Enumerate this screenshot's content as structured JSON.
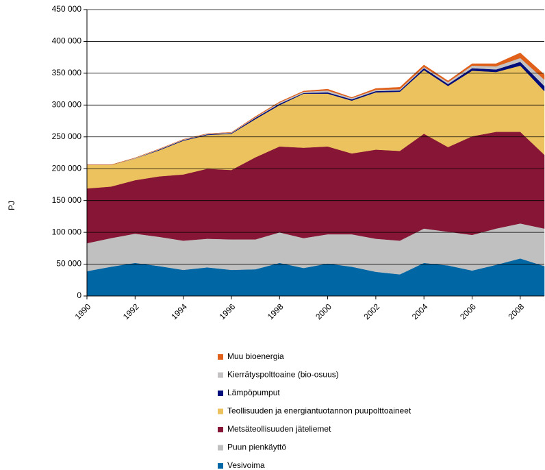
{
  "chart_data": {
    "type": "area",
    "stacked": true,
    "y_label": "PJ",
    "x": [
      1990,
      1991,
      1992,
      1993,
      1994,
      1995,
      1996,
      1997,
      1998,
      1999,
      2000,
      2001,
      2002,
      2003,
      2004,
      2005,
      2006,
      2007,
      2008,
      2009
    ],
    "xlim": [
      1990,
      2009
    ],
    "xticks": [
      1990,
      1992,
      1994,
      1996,
      1998,
      2000,
      2002,
      2004,
      2006,
      2008
    ],
    "ylim": [
      0,
      450000
    ],
    "yticks": [
      0,
      {
        "value": 50000,
        "label": "50 000"
      },
      {
        "value": 100000,
        "label": "100 000"
      },
      {
        "value": 150000,
        "label": "150 000"
      },
      {
        "value": 200000,
        "label": "200 000"
      },
      {
        "value": 250000,
        "label": "250 000"
      },
      {
        "value": 300000,
        "label": "300 000"
      },
      {
        "value": 350000,
        "label": "350 000"
      },
      {
        "value": 400000,
        "label": "400 000"
      },
      {
        "value": 450000,
        "label": "450 000"
      }
    ],
    "grid": true,
    "legend": "bottom",
    "series": [
      {
        "name": "Vesivoima",
        "color": "#0066a4",
        "values": [
          39000,
          46000,
          52000,
          47000,
          41000,
          45000,
          41000,
          42000,
          52000,
          44000,
          51000,
          46000,
          38000,
          34000,
          52000,
          48000,
          40000,
          49000,
          59000,
          47000
        ]
      },
      {
        "name": "Puun pienkäyttö",
        "color": "#c0c0c0",
        "values": [
          44000,
          45000,
          46000,
          46000,
          46000,
          45000,
          48000,
          47000,
          48000,
          47000,
          46000,
          51000,
          52000,
          53000,
          54000,
          53000,
          56000,
          57000,
          55000,
          59000
        ]
      },
      {
        "name": "Metsäteollisuuden jäteliemet",
        "color": "#871636",
        "values": [
          86000,
          81000,
          84000,
          95000,
          104000,
          110000,
          109000,
          129000,
          135000,
          142000,
          138000,
          127000,
          140000,
          141000,
          149000,
          133000,
          155000,
          152000,
          144000,
          116000
        ]
      },
      {
        "name": "Teollisuuden ja energiantuotannon puupolttoaineet",
        "color": "#ebc25e",
        "values": [
          37000,
          34000,
          34000,
          41000,
          53000,
          53000,
          57000,
          60000,
          65000,
          85000,
          83000,
          83000,
          90000,
          93000,
          100000,
          96000,
          103000,
          94000,
          104000,
          100000
        ]
      },
      {
        "name": "Lämpöpumput",
        "color": "#000c7a",
        "values": [
          0,
          0,
          0,
          1000,
          1000,
          1000,
          1000,
          2000,
          2000,
          1000,
          2000,
          2000,
          2000,
          2000,
          3000,
          3000,
          4000,
          4000,
          6000,
          8000
        ]
      },
      {
        "name": "Kierrätyspolttoaine (bio-osuus)",
        "color": "#c4c2c2",
        "values": [
          0,
          0,
          1000,
          1000,
          1000,
          1000,
          1000,
          1000,
          2000,
          2000,
          3000,
          2000,
          2000,
          2000,
          2000,
          3000,
          4000,
          5000,
          6000,
          10000
        ]
      },
      {
        "name": "Muu bioenergia",
        "color": "#e0601a",
        "values": [
          0,
          0,
          0,
          0,
          0,
          0,
          0,
          1000,
          1000,
          1000,
          2000,
          1000,
          2000,
          3000,
          3000,
          2000,
          3000,
          4000,
          8000,
          8000
        ]
      }
    ]
  }
}
